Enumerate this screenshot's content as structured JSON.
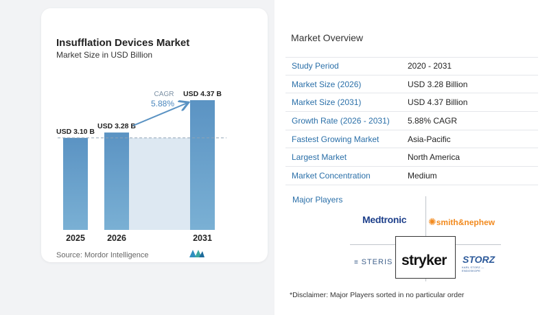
{
  "chart": {
    "title": "Insufflation Devices Market",
    "subtitle": "Market Size in USD Billion",
    "source": "Source:  Mordor Intelligence",
    "cagr_label": "CAGR",
    "cagr_value": "5.88%"
  },
  "chart_data": {
    "type": "bar",
    "title": "Insufflation Devices Market",
    "subtitle": "Market Size in USD Billion",
    "categories": [
      "2025",
      "2026",
      "2031"
    ],
    "values": [
      3.1,
      3.28,
      4.37
    ],
    "value_labels": [
      "USD 3.10 B",
      "USD 3.28 B",
      "USD 4.37 B"
    ],
    "ylim": [
      0,
      4.6
    ],
    "annotation": "CAGR 5.88%",
    "colors": {
      "bar_top": "#5b93c3",
      "bar_bottom": "#7ab0d4",
      "shade": "#dde8f2",
      "dashed": "#8fa2b4"
    }
  },
  "overview": {
    "title": "Market Overview",
    "rows": [
      {
        "key": "Study Period",
        "value": "2020 - 2031"
      },
      {
        "key": "Market Size (2026)",
        "value": "USD 3.28 Billion"
      },
      {
        "key": "Market Size (2031)",
        "value": "USD 4.37 Billion"
      },
      {
        "key": "Growth Rate (2026 - 2031)",
        "value": "5.88% CAGR"
      },
      {
        "key": "Fastest Growing Market",
        "value": "Asia-Pacific"
      },
      {
        "key": "Largest Market",
        "value": "North America"
      },
      {
        "key": "Market Concentration",
        "value": "Medium"
      }
    ],
    "players_title": "Major Players",
    "players": {
      "medtronic": "Medtronic",
      "smith_nephew": "smith&nephew",
      "steris": "STERIS",
      "stryker": "stryker",
      "storz": "STORZ",
      "storz_sub": "KARL STORZ — ENDOSKOPE"
    },
    "disclaimer": "*Disclaimer: Major Players sorted in no particular order"
  }
}
